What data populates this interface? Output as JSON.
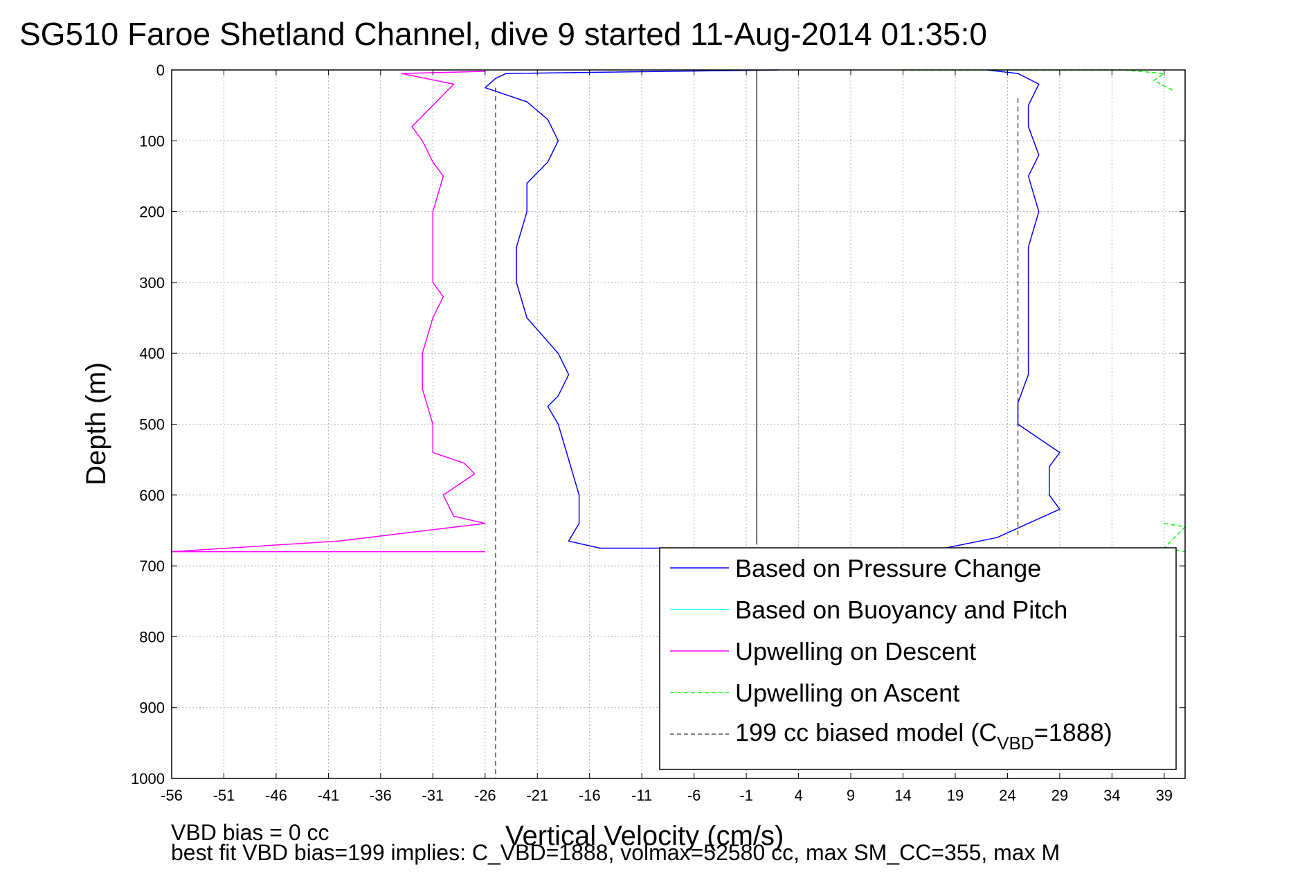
{
  "chart_data": {
    "type": "line",
    "title": "SG510 Faroe Shetland Channel, dive 9 started 11-Aug-2014 01:35:0",
    "xlabel": "Vertical Velocity (cm/s)",
    "ylabel": "Depth (m)",
    "xlim": [
      -56,
      41
    ],
    "ylim": [
      0,
      1000
    ],
    "y_reversed": true,
    "grid": true,
    "x_ticks": [
      -56,
      -51,
      -46,
      -41,
      -36,
      -31,
      -26,
      -21,
      -16,
      -11,
      -6,
      -1,
      4,
      9,
      14,
      19,
      24,
      29,
      34,
      39
    ],
    "y_ticks": [
      0,
      100,
      200,
      300,
      400,
      500,
      600,
      700,
      800,
      900,
      1000
    ],
    "legend_position": "bottom-right",
    "legend": {
      "pressure": "Based on Pressure Change",
      "buoyancy": "Based on Buoyancy and Pitch",
      "descent": "Upwelling on Descent",
      "ascent": "Upwelling on Ascent",
      "model_prefix": "199 cc biased model (C",
      "model_sub": "VBD",
      "model_suffix": "=1888)"
    },
    "colors": {
      "pressure": "#0000ff",
      "buoyancy": "#00ffff",
      "descent": "#ff00ff",
      "ascent": "#00ff00",
      "model": "#555555"
    },
    "series": [
      {
        "key": "descent",
        "name": "Upwelling on Descent",
        "points": [
          [
            -26,
            2
          ],
          [
            -34,
            5
          ],
          [
            -29,
            20
          ],
          [
            -31,
            50
          ],
          [
            -33,
            80
          ],
          [
            -32,
            100
          ],
          [
            -31,
            130
          ],
          [
            -30,
            150
          ],
          [
            -31,
            200
          ],
          [
            -31,
            250
          ],
          [
            -31,
            300
          ],
          [
            -30,
            320
          ],
          [
            -31,
            350
          ],
          [
            -32,
            400
          ],
          [
            -32,
            450
          ],
          [
            -31,
            500
          ],
          [
            -31,
            540
          ],
          [
            -28,
            555
          ],
          [
            -27,
            570
          ],
          [
            -30,
            600
          ],
          [
            -29,
            630
          ],
          [
            -26,
            640
          ],
          [
            -40,
            665
          ],
          [
            -56,
            680
          ],
          [
            -26,
            680
          ]
        ]
      },
      {
        "key": "pressure_descent",
        "name": "Based on Pressure Change",
        "points": [
          [
            2,
            0
          ],
          [
            -3,
            1
          ],
          [
            -24,
            5
          ],
          [
            -25,
            12
          ],
          [
            -26,
            25
          ],
          [
            -24,
            35
          ],
          [
            -22,
            45
          ],
          [
            -20,
            70
          ],
          [
            -19,
            100
          ],
          [
            -20,
            130
          ],
          [
            -22,
            160
          ],
          [
            -22,
            200
          ],
          [
            -23,
            250
          ],
          [
            -23,
            300
          ],
          [
            -22,
            350
          ],
          [
            -19,
            400
          ],
          [
            -18,
            430
          ],
          [
            -19,
            460
          ],
          [
            -20,
            475
          ],
          [
            -19,
            500
          ],
          [
            -18,
            550
          ],
          [
            -17,
            600
          ],
          [
            -17,
            640
          ],
          [
            -18,
            665
          ],
          [
            -15,
            675
          ],
          [
            -5,
            675
          ]
        ]
      },
      {
        "key": "pressure_ascent",
        "name": "Based on Pressure Change",
        "points": [
          [
            18,
            675
          ],
          [
            23,
            660
          ],
          [
            26,
            640
          ],
          [
            29,
            620
          ],
          [
            28,
            600
          ],
          [
            28,
            560
          ],
          [
            29,
            540
          ],
          [
            27,
            520
          ],
          [
            25,
            500
          ],
          [
            25,
            470
          ],
          [
            26,
            430
          ],
          [
            26,
            400
          ],
          [
            26,
            350
          ],
          [
            26,
            300
          ],
          [
            26,
            250
          ],
          [
            27,
            200
          ],
          [
            26,
            150
          ],
          [
            27,
            120
          ],
          [
            26,
            80
          ],
          [
            26,
            50
          ],
          [
            27,
            20
          ],
          [
            25,
            5
          ],
          [
            22,
            0
          ]
        ]
      },
      {
        "key": "ascent",
        "name": "Upwelling on Ascent",
        "points": [
          [
            14,
            0
          ],
          [
            35,
            0
          ],
          [
            39,
            5
          ],
          [
            38,
            15
          ],
          [
            40,
            30
          ]
        ]
      },
      {
        "key": "ascent_deep",
        "name": "Upwelling on Ascent",
        "points": [
          [
            39,
            640
          ],
          [
            41,
            645
          ],
          [
            39,
            675
          ],
          [
            41,
            680
          ]
        ]
      }
    ],
    "model_lines": [
      {
        "x": -25,
        "y_from": 25,
        "y_to": 1000
      },
      {
        "x": 25,
        "y_from": 40,
        "y_to": 660
      }
    ],
    "zero_line": {
      "x": 0,
      "y_from": 0,
      "y_to": 670
    }
  },
  "annotations": {
    "note1": "VBD bias = 0 cc",
    "note2": "best fit VBD bias=199 implies: C_VBD=1888, volmax=52580 cc, max SM_CC=355, max M"
  }
}
